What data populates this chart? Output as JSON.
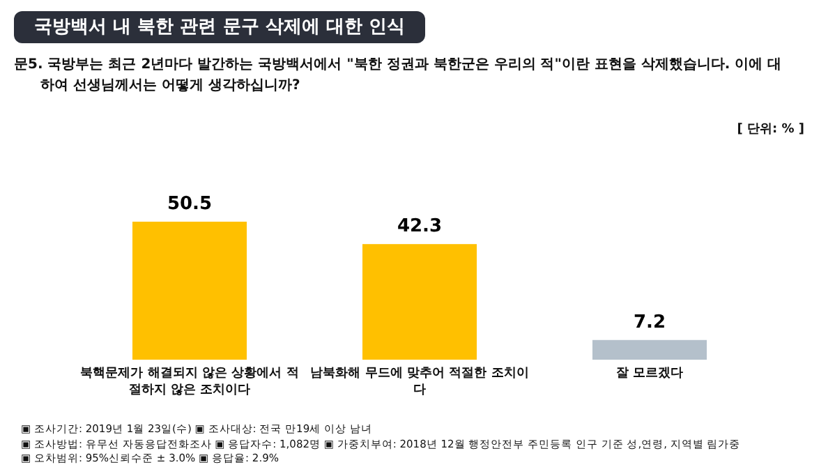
{
  "chart_data": {
    "type": "bar",
    "title": "국방백서 내 북한 관련 문구 삭제에 대한 인식",
    "subtitle": "문5. 국방부는 최근 2년마다 발간하는 국방백서에서 \"북한 정권과 북한군은 우리의 적\"이란 표현을 삭제했습니다. 이에 대하여 선생님께서는 어떻게 생각하십니까?",
    "categories": [
      "북핵문제가 해결되지 않은 상황에서 적절하지 않은 조치이다",
      "남북화해 무드에 맞추어 적절한 조치이다",
      "잘 모르겠다"
    ],
    "values": [
      50.5,
      42.3,
      7.2
    ],
    "colors": [
      "#ffc000",
      "#ffc000",
      "#b4c0cb"
    ],
    "data_labels": true,
    "annotations": [
      "[ 단위: % ]",
      "▣ 조사기간: 2019년 1월 23일(수) ▣ 조사대상: 전국 만19세 이상 남녀",
      "▣ 조사방법: 유무선 자동응답전화조사 ▣ 응답자수: 1,082명 ▣ 가중치부여: 2018년 12월 행정안전부 주민등록 인구 기준 성,연령, 지역별 림가중",
      "▣ 오차범위: 95%신뢰수준 ± 3.0% ▣ 응답율: 2.9%"
    ]
  }
}
